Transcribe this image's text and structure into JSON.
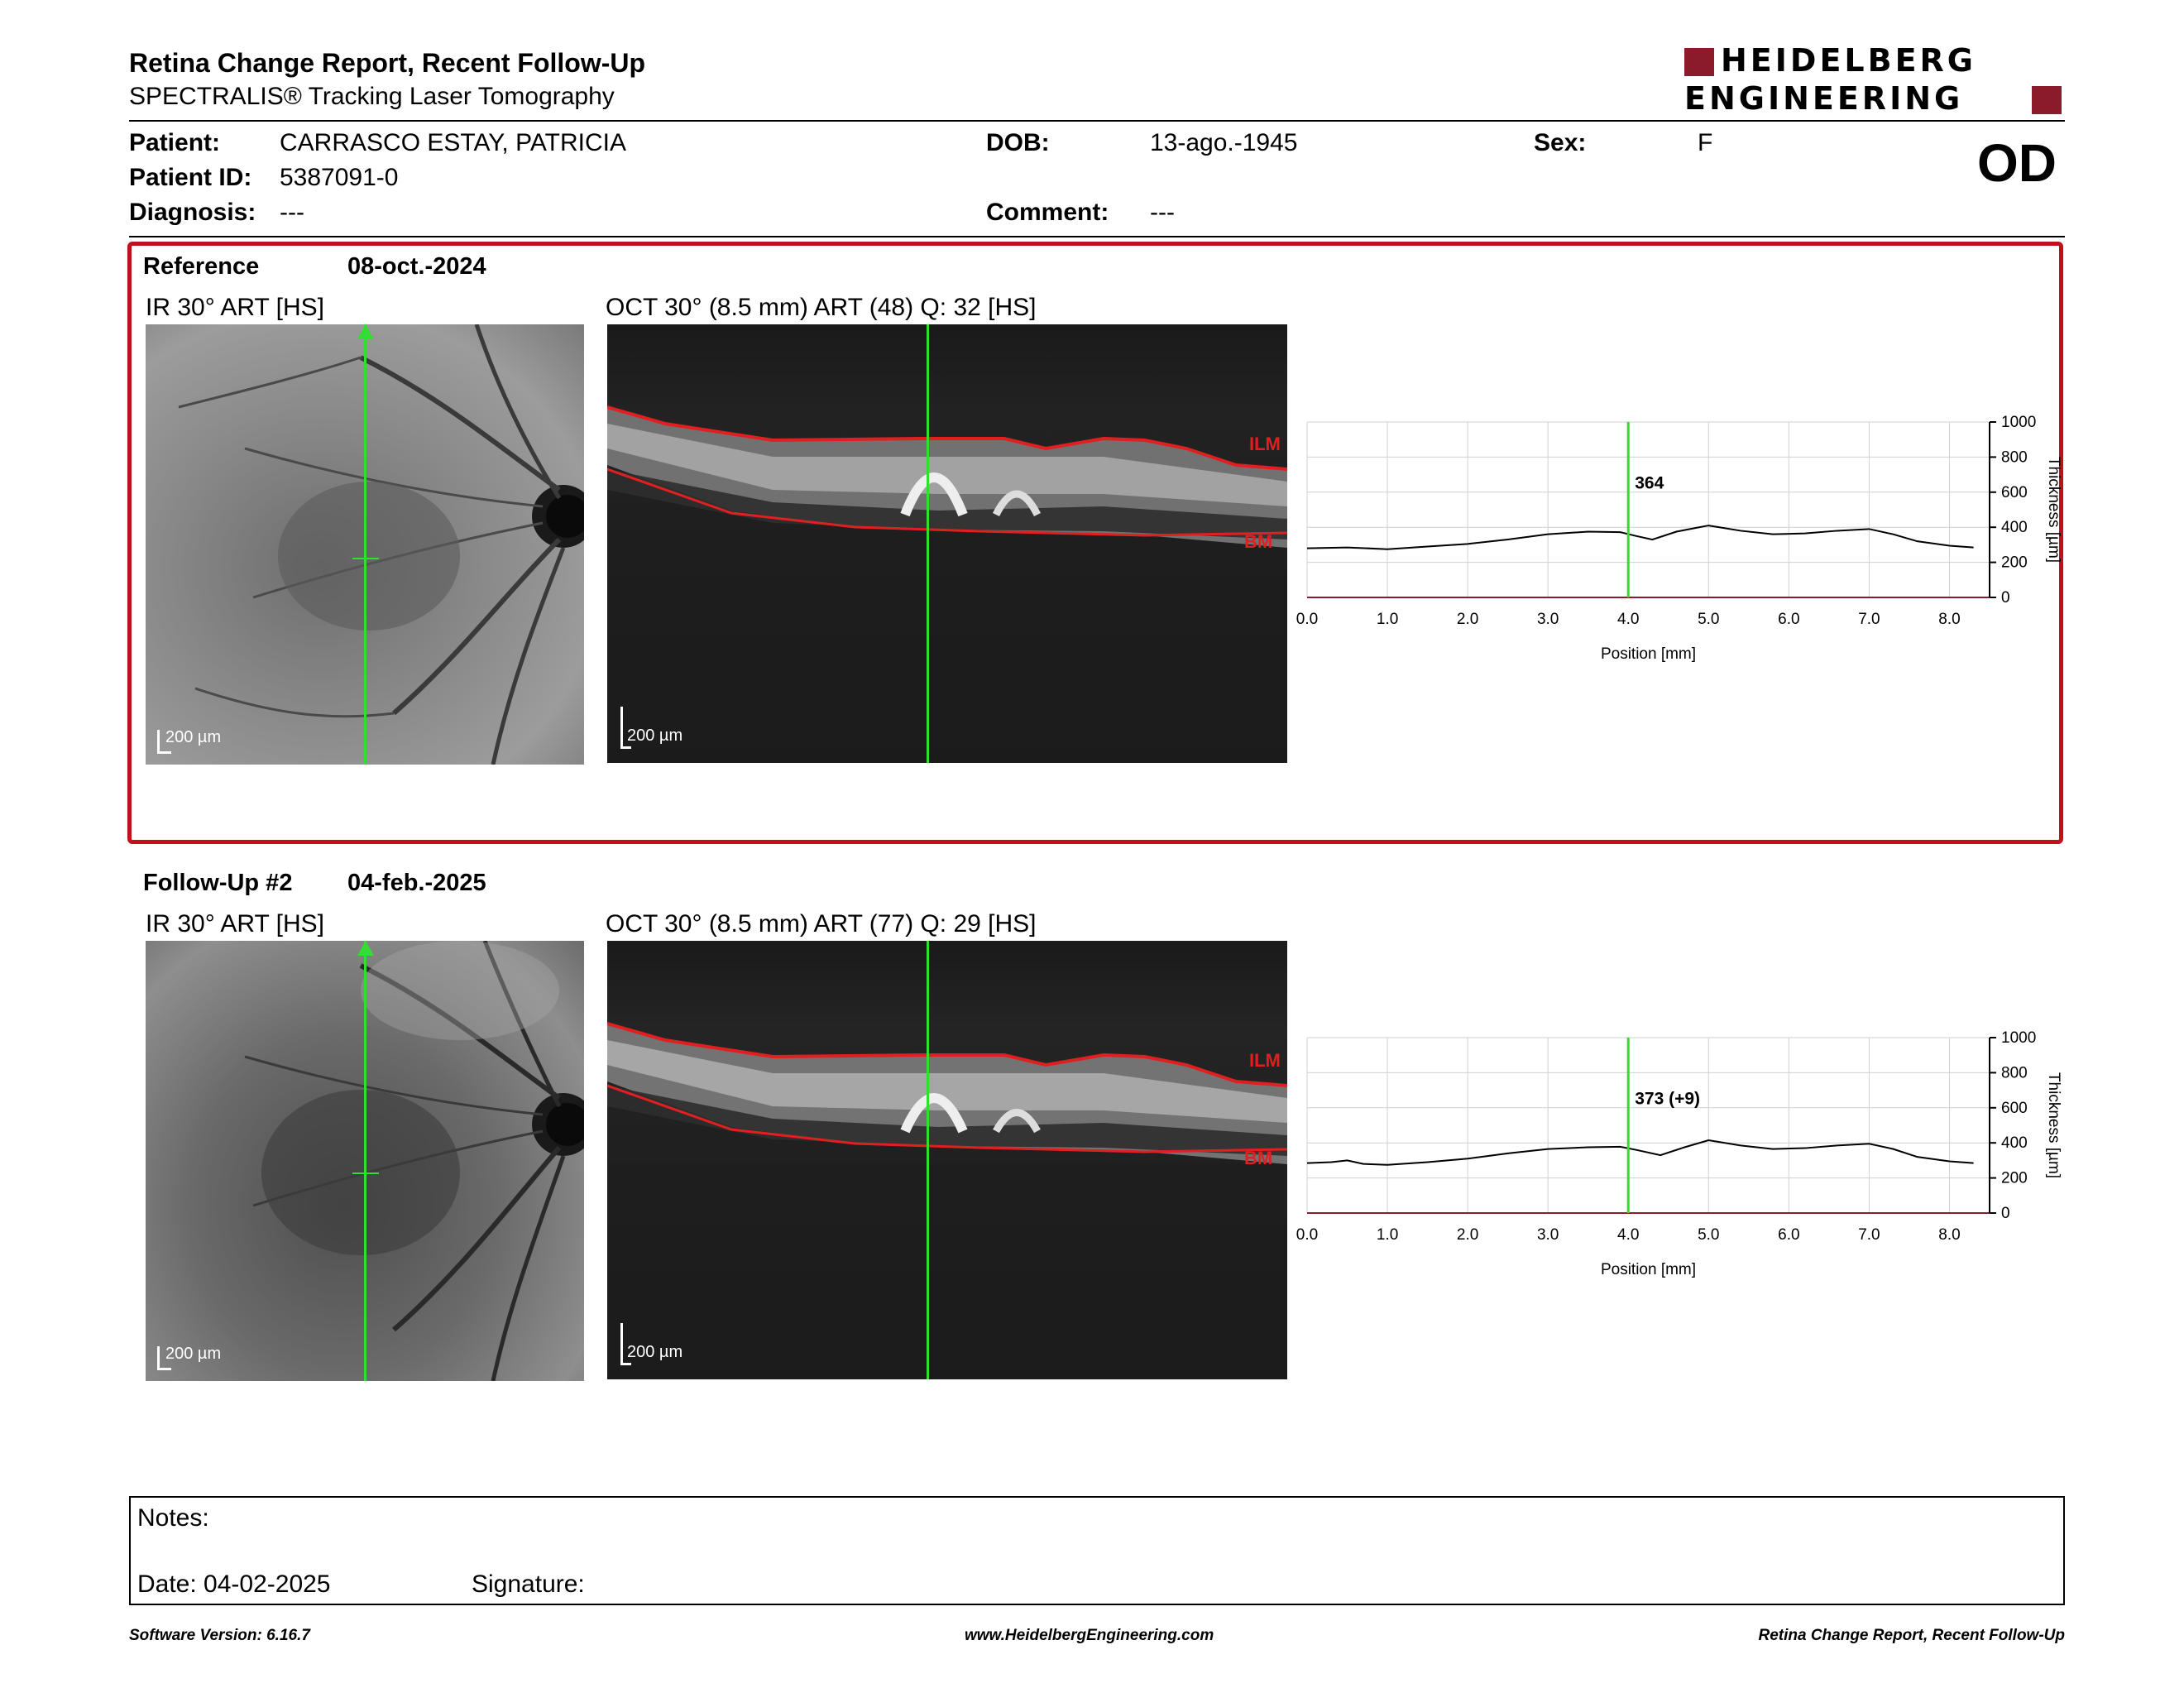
{
  "header": {
    "title": "Retina Change Report, Recent Follow-Up",
    "subtitle": "SPECTRALIS® Tracking Laser Tomography",
    "logo_line1": "HEIDELBERG",
    "logo_line2": "ENGINEERING",
    "brand_color": "#8b1a2b",
    "eye": "OD"
  },
  "patient": {
    "patient_label": "Patient:",
    "patient_value": "CARRASCO ESTAY, PATRICIA",
    "dob_label": "DOB:",
    "dob_value": "13-ago.-1945",
    "sex_label": "Sex:",
    "sex_value": "F",
    "id_label": "Patient ID:",
    "id_value": "5387091-0",
    "diagnosis_label": "Diagnosis:",
    "diagnosis_value": "---",
    "comment_label": "Comment:",
    "comment_value": "---"
  },
  "reference": {
    "label": "Reference",
    "date": "08-oct.-2024",
    "ir_label": "IR 30° ART [HS]",
    "oct_label": "OCT 30° (8.5 mm) ART (48) Q: 32 [HS]",
    "scale_ir": "200 µm",
    "scale_oct": "200 µm",
    "ilm": "ILM",
    "bm": "BM",
    "thickness_label": "364"
  },
  "followup": {
    "label": "Follow-Up #2",
    "date": "04-feb.-2025",
    "ir_label": "IR 30° ART [HS]",
    "oct_label": "OCT 30° (8.5 mm) ART (77) Q: 29 [HS]",
    "scale_ir": "200 µm",
    "scale_oct": "200 µm",
    "ilm": "ILM",
    "bm": "BM",
    "thickness_label": "373 (+9)"
  },
  "chart_data": [
    {
      "type": "line",
      "xlabel": "Position [mm]",
      "ylabel": "Thickness [µm]",
      "xlim": [
        0,
        8.5
      ],
      "ylim": [
        0,
        1000
      ],
      "x_ticks": [
        "0.0",
        "1.0",
        "2.0",
        "3.0",
        "4.0",
        "5.0",
        "6.0",
        "7.0",
        "8.0"
      ],
      "y_ticks": [
        "0",
        "200",
        "400",
        "600",
        "800",
        "1000"
      ],
      "grid": true,
      "marker_x": 4.0,
      "marker_label": "364",
      "series": [
        {
          "x": [
            0.0,
            0.5,
            1.0,
            1.5,
            2.0,
            2.5,
            3.0,
            3.5,
            3.9,
            4.1,
            4.3,
            4.6,
            5.0,
            5.4,
            5.8,
            6.2,
            6.6,
            7.0,
            7.3,
            7.6,
            8.0,
            8.3
          ],
          "values": [
            280,
            285,
            275,
            290,
            305,
            330,
            360,
            375,
            372,
            350,
            330,
            375,
            410,
            380,
            360,
            365,
            380,
            390,
            360,
            320,
            295,
            285
          ]
        }
      ]
    },
    {
      "type": "line",
      "xlabel": "Position [mm]",
      "ylabel": "Thickness [µm]",
      "xlim": [
        0,
        8.5
      ],
      "ylim": [
        0,
        1000
      ],
      "x_ticks": [
        "0.0",
        "1.0",
        "2.0",
        "3.0",
        "4.0",
        "5.0",
        "6.0",
        "7.0",
        "8.0"
      ],
      "y_ticks": [
        "0",
        "200",
        "400",
        "600",
        "800",
        "1000"
      ],
      "grid": true,
      "marker_x": 4.0,
      "marker_label": "373 (+9)",
      "series": [
        {
          "x": [
            0.0,
            0.3,
            0.5,
            0.7,
            1.0,
            1.5,
            2.0,
            2.5,
            3.0,
            3.5,
            3.9,
            4.1,
            4.4,
            4.7,
            5.0,
            5.4,
            5.8,
            6.2,
            6.6,
            7.0,
            7.3,
            7.6,
            8.0,
            8.3
          ],
          "values": [
            285,
            290,
            300,
            280,
            275,
            290,
            310,
            340,
            365,
            375,
            378,
            360,
            330,
            375,
            415,
            385,
            365,
            370,
            385,
            395,
            365,
            320,
            295,
            285
          ]
        }
      ]
    }
  ],
  "notes": {
    "notes_label": "Notes:",
    "date_label": "Date: 04-02-2025",
    "signature_label": "Signature:"
  },
  "footer": {
    "version": "Software Version: 6.16.7",
    "url": "www.HeidelbergEngineering.com",
    "report": "Retina Change Report, Recent Follow-Up"
  }
}
